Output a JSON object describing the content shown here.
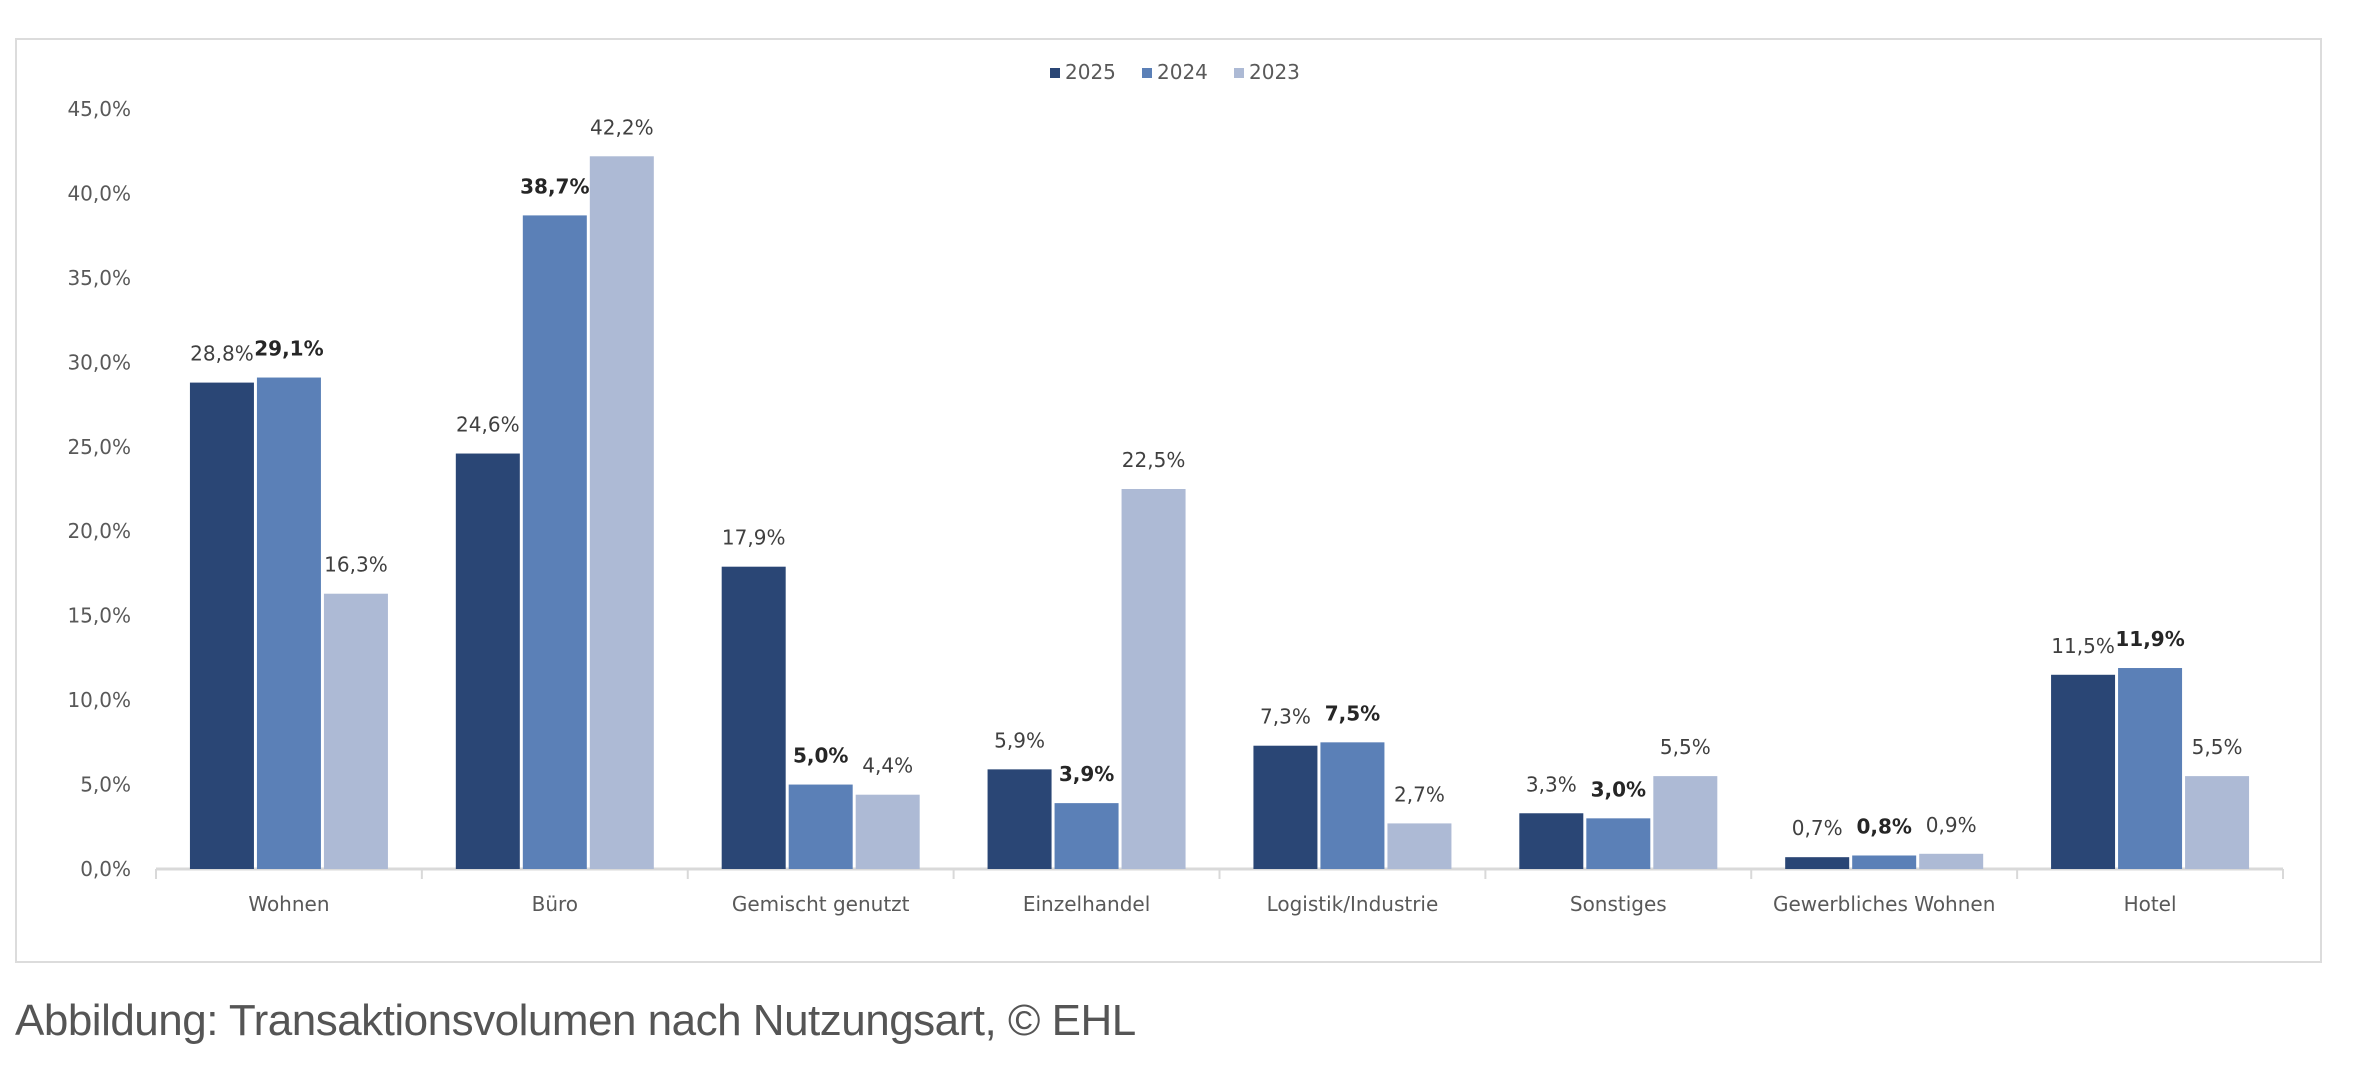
{
  "chart_data": {
    "type": "bar",
    "title": "",
    "xlabel": "",
    "ylabel": "",
    "ylim": [
      0,
      45
    ],
    "yticks": [
      "0,0%",
      "5,0%",
      "10,0%",
      "15,0%",
      "20,0%",
      "25,0%",
      "30,0%",
      "35,0%",
      "40,0%",
      "45,0%"
    ],
    "grid": false,
    "legend_position": "top-center",
    "categories": [
      "Wohnen",
      "Büro",
      "Gemischt genutzt",
      "Einzelhandel",
      "Logistik/Industrie",
      "Sonstiges",
      "Gewerbliches Wohnen",
      "Hotel"
    ],
    "series": [
      {
        "name": "2025",
        "color": "#2a4675",
        "values": [
          28.8,
          24.6,
          17.9,
          5.9,
          7.3,
          3.3,
          0.7,
          11.5
        ],
        "labels": [
          "28,8%",
          "24,6%",
          "17,9%",
          "5,9%",
          "7,3%",
          "3,3%",
          "0,7%",
          "11,5%"
        ]
      },
      {
        "name": "2024",
        "color": "#5b80b7",
        "values": [
          29.1,
          38.7,
          5.0,
          3.9,
          7.5,
          3.0,
          0.8,
          11.9
        ],
        "labels": [
          "29,1%",
          "38,7%",
          "5,0%",
          "3,9%",
          "7,5%",
          "3,0%",
          "0,8%",
          "11,9%"
        ]
      },
      {
        "name": "2023",
        "color": "#adbad5",
        "values": [
          16.3,
          42.2,
          4.4,
          22.5,
          2.7,
          5.5,
          0.9,
          5.5
        ],
        "labels": [
          "16,3%",
          "42,2%",
          "4,4%",
          "22,5%",
          "2,7%",
          "5,5%",
          "0,9%",
          "5,5%"
        ]
      }
    ]
  },
  "caption": "Abbildung: Transaktionsvolumen nach Nutzungsart, © EHL"
}
